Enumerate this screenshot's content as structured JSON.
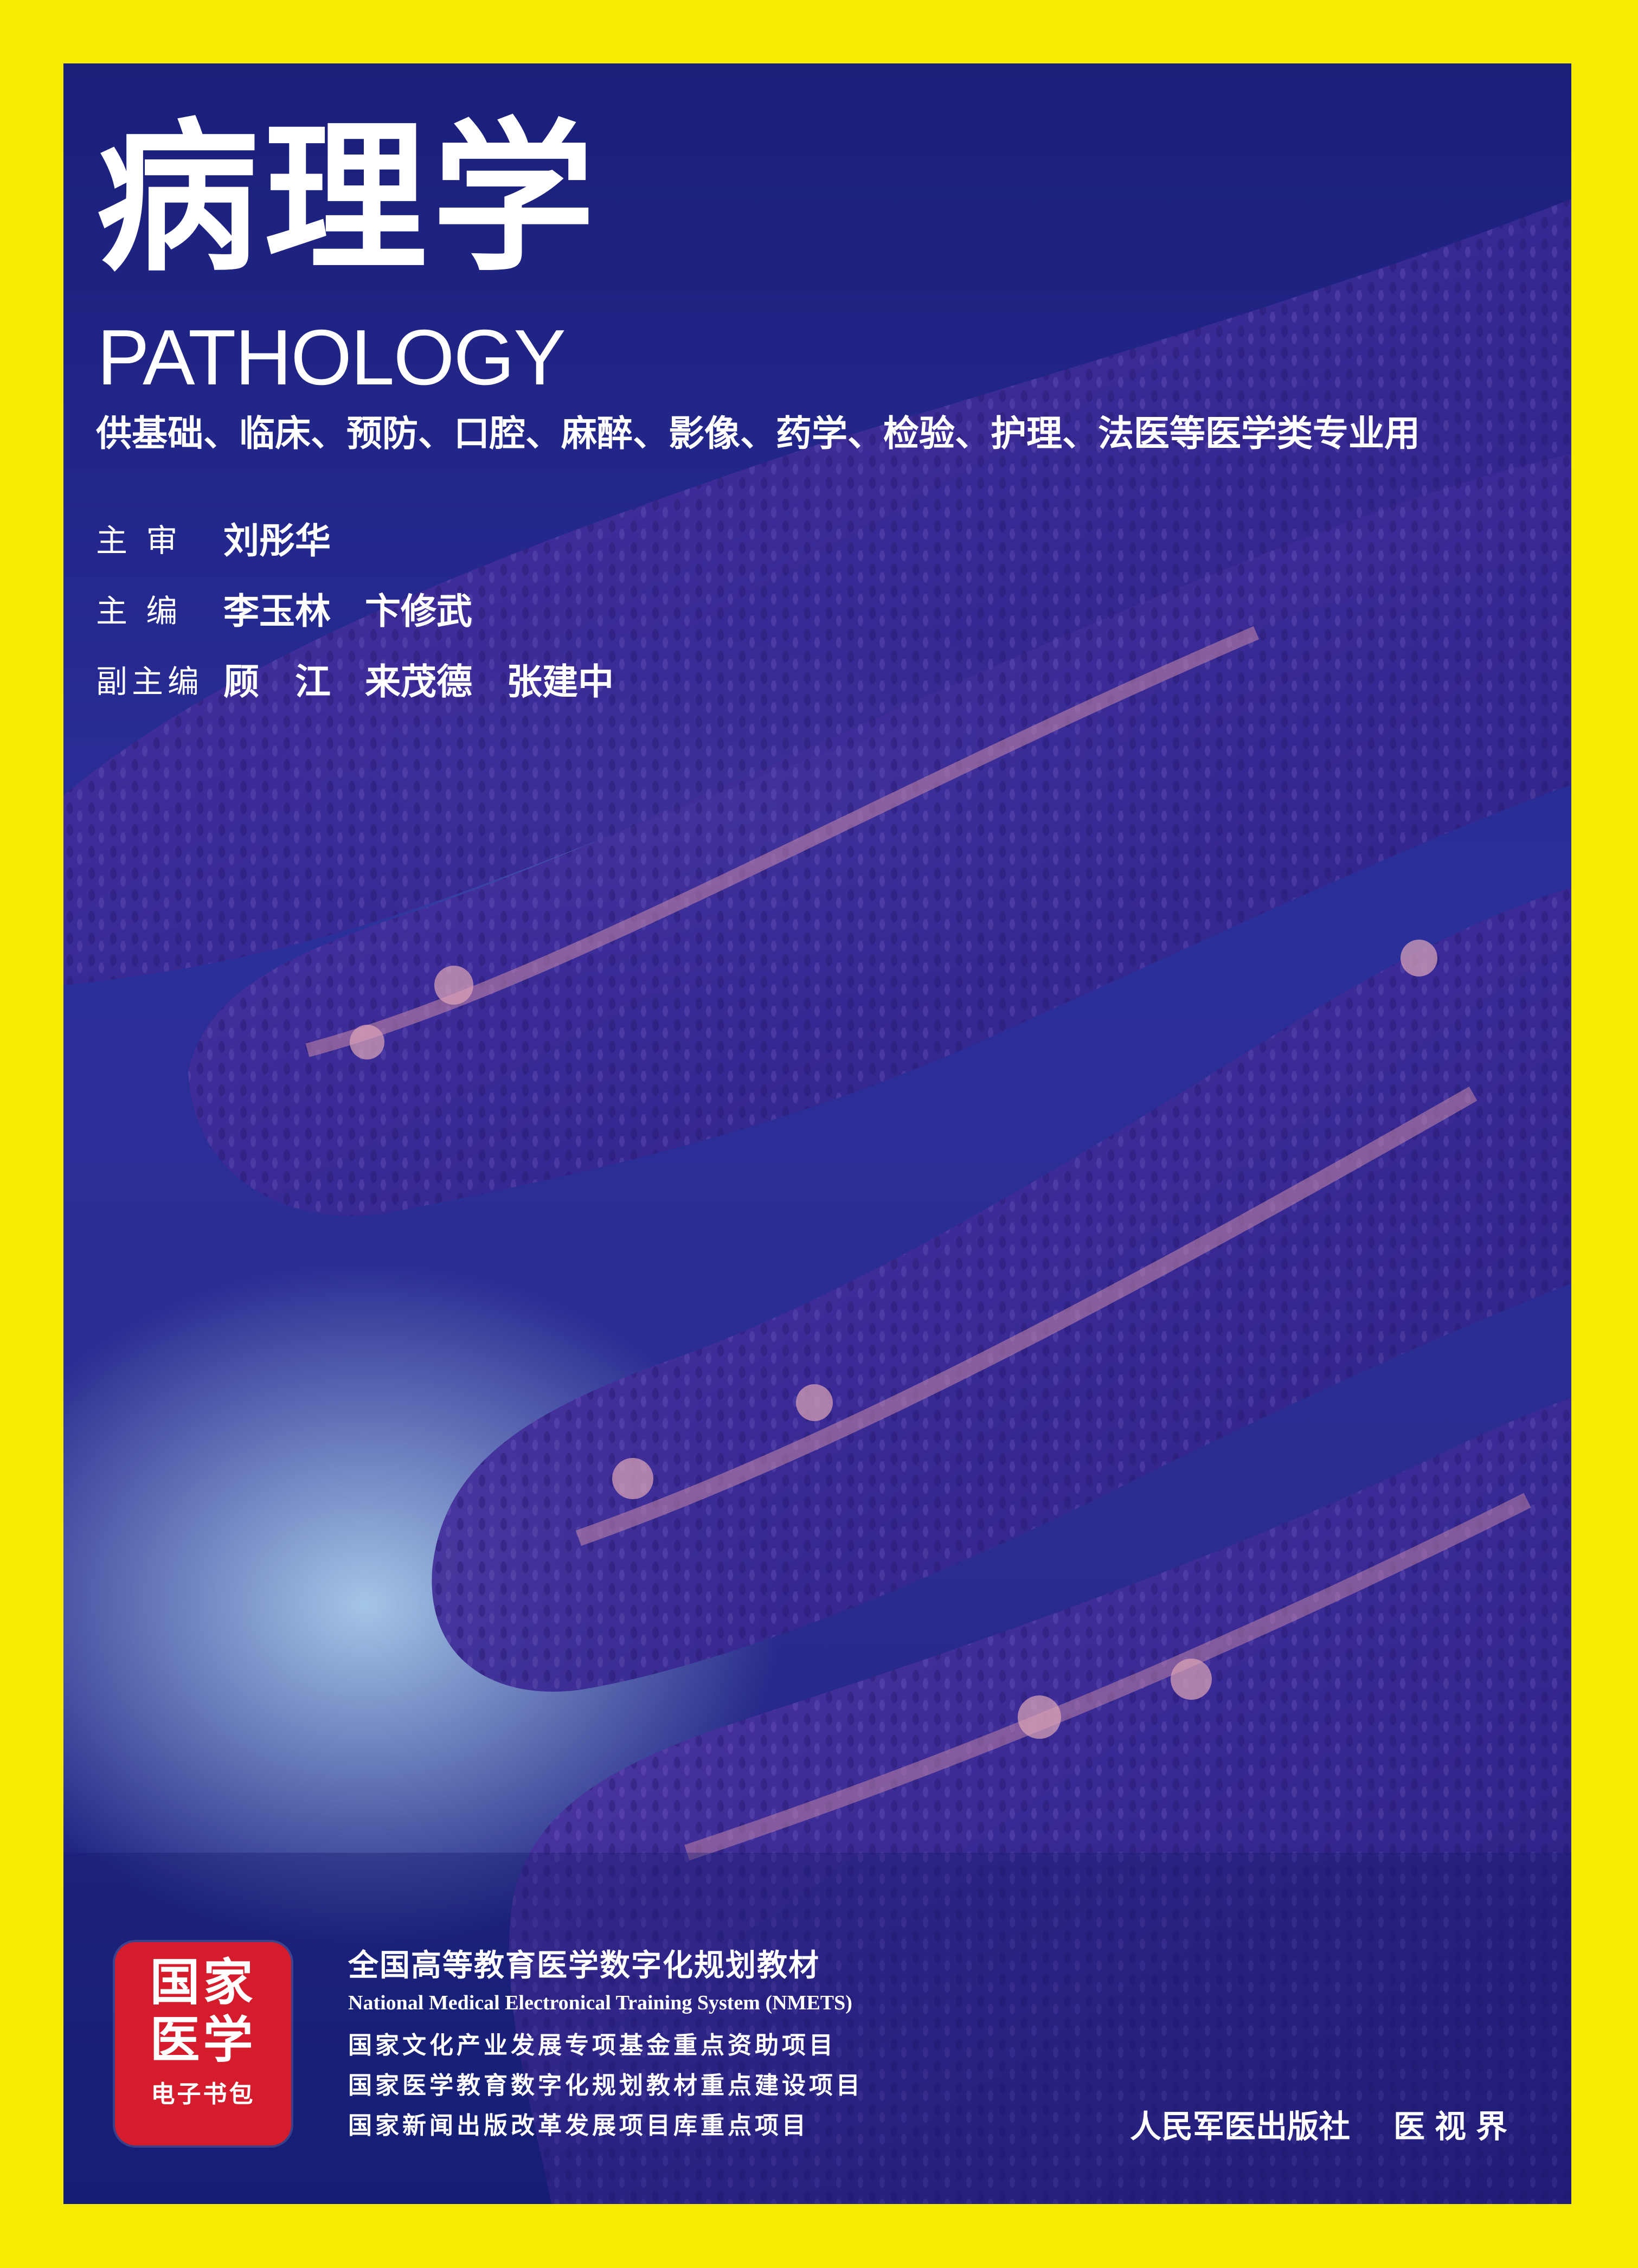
{
  "cover": {
    "title_cn": "病理学",
    "title_en": "PATHOLOGY",
    "subtitle": "供基础、临床、预防、口腔、麻醉、影像、药学、检验、护理、法医等医学类专业用",
    "editors": [
      {
        "label": "主  审",
        "names": [
          "刘彤华"
        ]
      },
      {
        "label": "主  编",
        "names": [
          "李玉林",
          "卞修武"
        ]
      },
      {
        "label": "副主编",
        "names": [
          "顾　江",
          "来茂德",
          "张建中"
        ]
      }
    ],
    "badge": {
      "line1": "国家",
      "line2": "医学",
      "line3": "电子书包"
    },
    "series_cn": "全国高等教育医学数字化规划教材",
    "series_en": "National Medical Electronical Training System (NMETS)",
    "projects": [
      "国家文化产业发展专项基金重点资助项目",
      "国家医学教育数字化规划教材重点建设项目",
      "国家新闻出版改革发展项目库重点项目"
    ],
    "publisher": "人民军医出版社",
    "publisher2": "医视界"
  },
  "colors": {
    "border": "#f7ec00",
    "background": "#2a2c8e",
    "badge": "#d51c2c"
  }
}
